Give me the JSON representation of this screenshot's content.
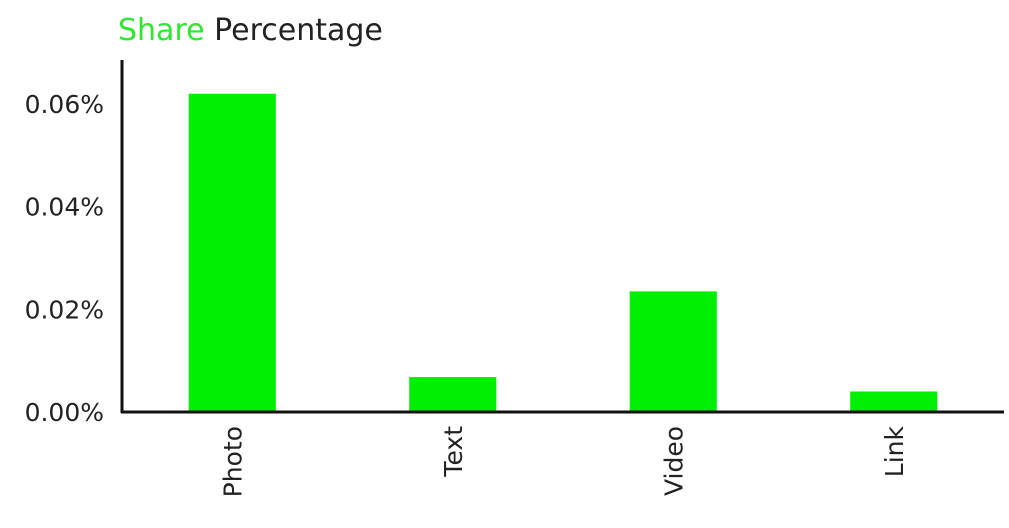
{
  "chart_data": {
    "type": "bar",
    "title_highlight": "Share",
    "title_rest": "Percentage",
    "categories": [
      "Photo",
      "Text",
      "Video",
      "Link"
    ],
    "values": [
      0.062,
      0.0068,
      0.0235,
      0.004
    ],
    "ylim": [
      0,
      0.06
    ],
    "yticks": [
      {
        "value": 0.0,
        "label": "0.00%"
      },
      {
        "value": 0.02,
        "label": "0.02%"
      },
      {
        "value": 0.04,
        "label": "0.04%"
      },
      {
        "value": 0.06,
        "label": "0.06%"
      }
    ],
    "xlabel": "",
    "ylabel": "",
    "grid": false,
    "legend": "none",
    "colors": {
      "bar": "#00ef00",
      "title_highlight": "#33e533",
      "title_rest": "#222222",
      "axis": "#111111",
      "tick_label": "#222222"
    }
  }
}
